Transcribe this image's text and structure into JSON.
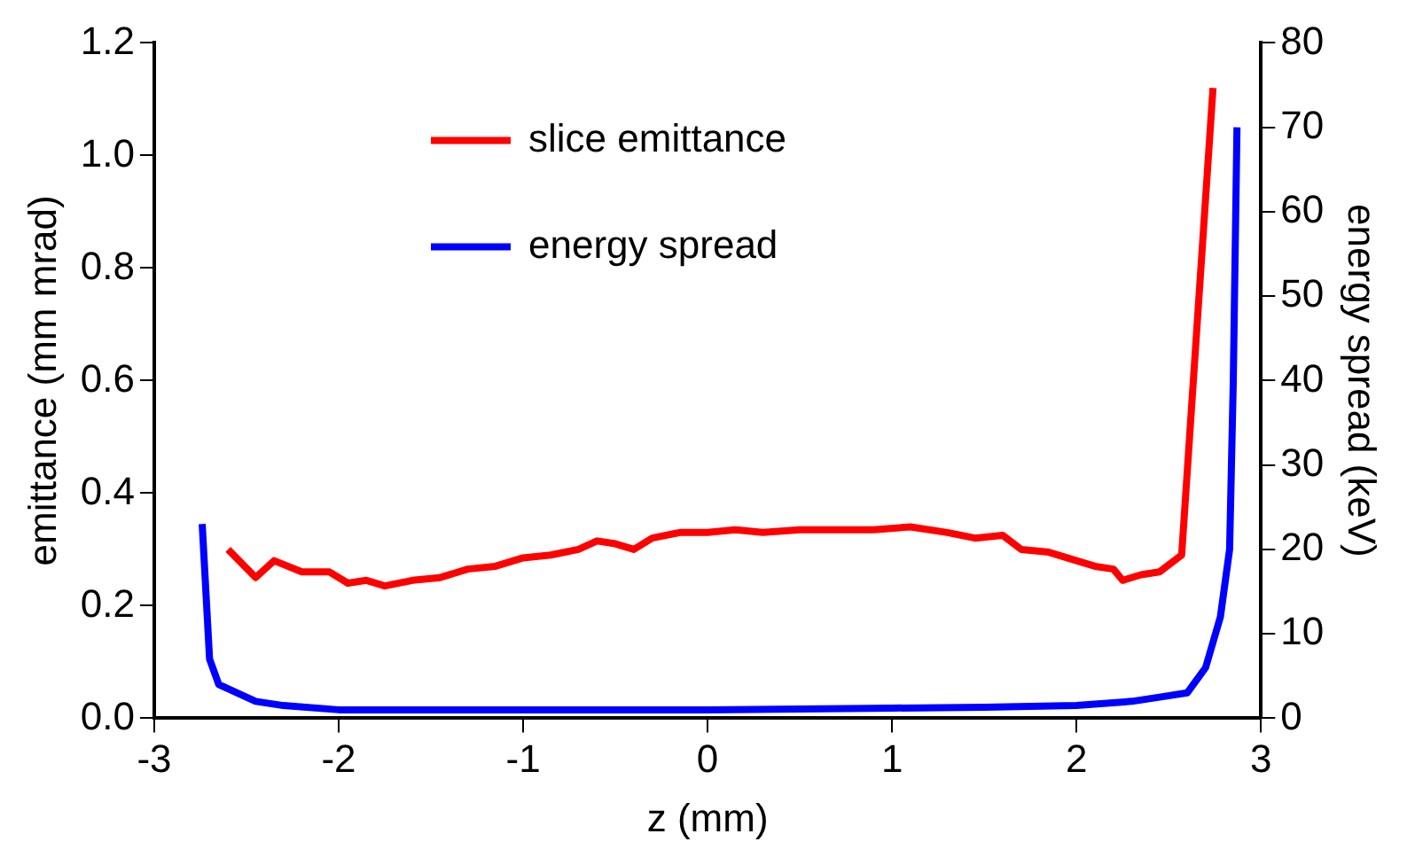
{
  "chart_data": {
    "type": "line",
    "xlabel": "z (mm)",
    "ylabel": "emittance (mm mrad)",
    "y2label": "energy spread (keV)",
    "xlim": [
      -3,
      3
    ],
    "xticks": [
      -3,
      -2,
      -1,
      0,
      1,
      2,
      3
    ],
    "ylim": [
      0,
      1.2
    ],
    "yticks": [
      {
        "value": 0,
        "label": "0.0"
      },
      0.2,
      0.4,
      0.6,
      0.8,
      {
        "value": 1,
        "label": "1.0"
      },
      1.2
    ],
    "y2lim": [
      0,
      80
    ],
    "y2ticks": [
      0,
      10,
      20,
      30,
      40,
      50,
      60,
      70,
      80
    ],
    "grid": false,
    "legend": "top",
    "marker": "none",
    "line_style": "solid",
    "series": [
      {
        "name": "slice emittance",
        "color": "#ff0000",
        "x": [
          -2.6,
          -2.45,
          -2.35,
          -2.2,
          -2.05,
          -1.95,
          -1.85,
          -1.75,
          -1.6,
          -1.45,
          -1.3,
          -1.15,
          -1.0,
          -0.85,
          -0.7,
          -0.6,
          -0.5,
          -0.4,
          -0.3,
          -0.15,
          0,
          0.15,
          0.3,
          0.5,
          0.7,
          0.9,
          1.1,
          1.3,
          1.45,
          1.6,
          1.7,
          1.85,
          2.0,
          2.1,
          2.2,
          2.25,
          2.35,
          2.45,
          2.57,
          2.74
        ],
        "values": [
          0.3,
          0.25,
          0.28,
          0.26,
          0.26,
          0.24,
          0.245,
          0.235,
          0.245,
          0.25,
          0.265,
          0.27,
          0.285,
          0.29,
          0.3,
          0.315,
          0.31,
          0.3,
          0.32,
          0.33,
          0.33,
          0.335,
          0.33,
          0.335,
          0.335,
          0.335,
          0.34,
          0.33,
          0.32,
          0.325,
          0.3,
          0.295,
          0.28,
          0.27,
          0.265,
          0.245,
          0.255,
          0.26,
          0.29,
          1.12
        ]
      },
      {
        "name": "energy spread",
        "color": "#0000ff",
        "axis": "y2",
        "x": [
          -2.74,
          -2.7,
          -2.65,
          -2.55,
          -2.45,
          -2.3,
          -2.0,
          -1.5,
          -1.0,
          -0.5,
          0,
          0.5,
          1.0,
          1.5,
          2.0,
          2.3,
          2.45,
          2.6,
          2.7,
          2.78,
          2.83,
          2.85,
          2.87
        ],
        "values": [
          23,
          7,
          4,
          3,
          2,
          1.5,
          1,
          1,
          1,
          1,
          1,
          1.1,
          1.2,
          1.3,
          1.5,
          2,
          2.5,
          3,
          6,
          12,
          20,
          40,
          70
        ]
      }
    ]
  }
}
